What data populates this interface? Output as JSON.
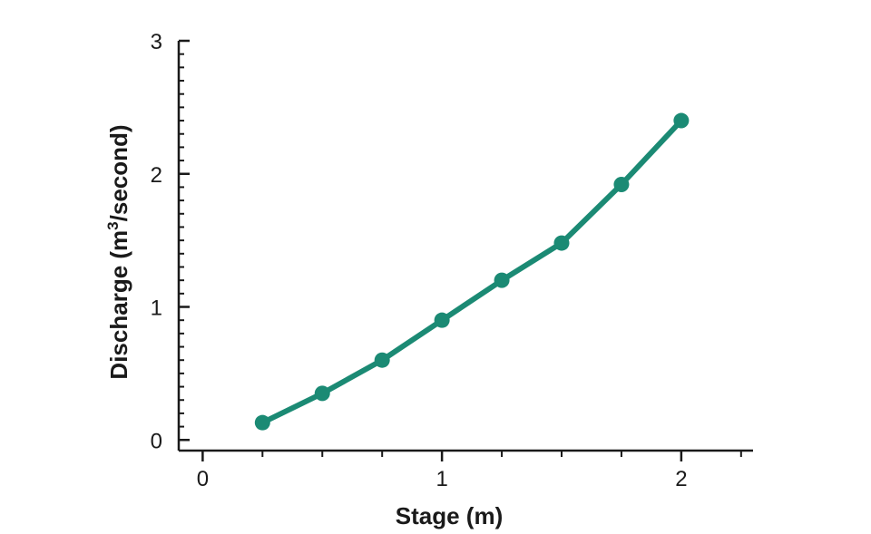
{
  "chart_data": {
    "type": "line",
    "title": "",
    "xlabel": "Stage (m)",
    "ylabel_main": "Discharge (m",
    "ylabel_sup": "3",
    "ylabel_tail": "/second)",
    "xlim": [
      -0.1,
      2.3
    ],
    "ylim": [
      -0.08,
      3.0
    ],
    "xticks": [
      0,
      1,
      2
    ],
    "yticks": [
      0,
      1,
      2,
      3
    ],
    "xticks_minor_step": 0.25,
    "yticks_minor_step": 0.1,
    "grid": false,
    "line_color": "#1b8a74",
    "series": [
      {
        "x": [
          0.25,
          0.5,
          0.75,
          1.0,
          1.25,
          1.5,
          1.75,
          2.0
        ],
        "y": [
          0.13,
          0.35,
          0.6,
          0.9,
          1.2,
          1.48,
          1.92,
          2.4
        ]
      }
    ]
  }
}
